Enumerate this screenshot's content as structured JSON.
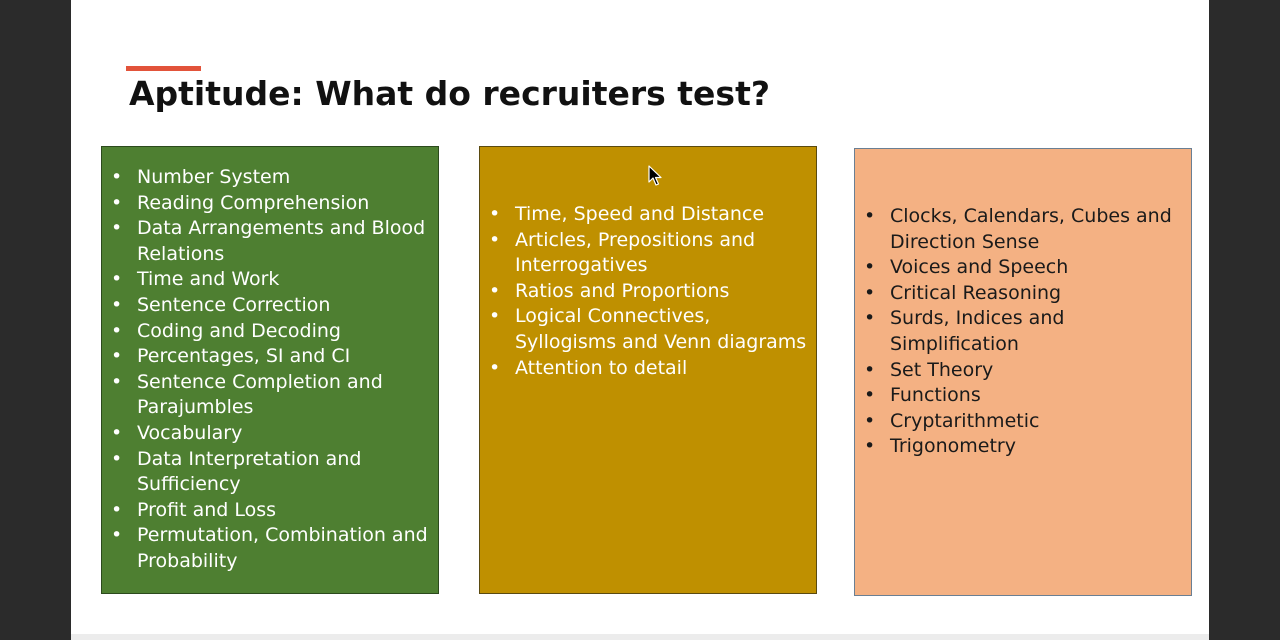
{
  "slide": {
    "title": "Aptitude: What do recruiters test?",
    "accent_color": "#e2533a"
  },
  "columns": [
    {
      "color": "#4e7f31",
      "bullet_icon": "bullet-icon",
      "items": [
        "Number System",
        "Reading Comprehension",
        "Data Arrangements and Blood Relations",
        "Time and Work",
        "Sentence Correction",
        "Coding and Decoding",
        "Percentages, SI and CI",
        "Sentence Completion and Parajumbles",
        "Vocabulary",
        "Data Interpretation and Sufficiency",
        "Profit and Loss",
        "Permutation, Combination and Probability"
      ]
    },
    {
      "color": "#bf9000",
      "bullet_icon": "bullet-icon",
      "items": [
        "Time, Speed and Distance",
        "Articles, Prepositions and Interrogatives",
        "Ratios and Proportions",
        "Logical Connectives, Syllogisms and Venn diagrams",
        "Attention to detail"
      ]
    },
    {
      "color": "#f4b183",
      "bullet_icon": "bullet-icon",
      "items": [
        "Clocks, Calendars, Cubes and Direction Sense",
        "Voices and Speech",
        "Critical Reasoning",
        "Surds, Indices and Simplification",
        "Set Theory",
        "Functions",
        "Cryptarithmetic",
        "Trigonometry"
      ]
    }
  ],
  "cursor_icon": "mouse-pointer-icon"
}
